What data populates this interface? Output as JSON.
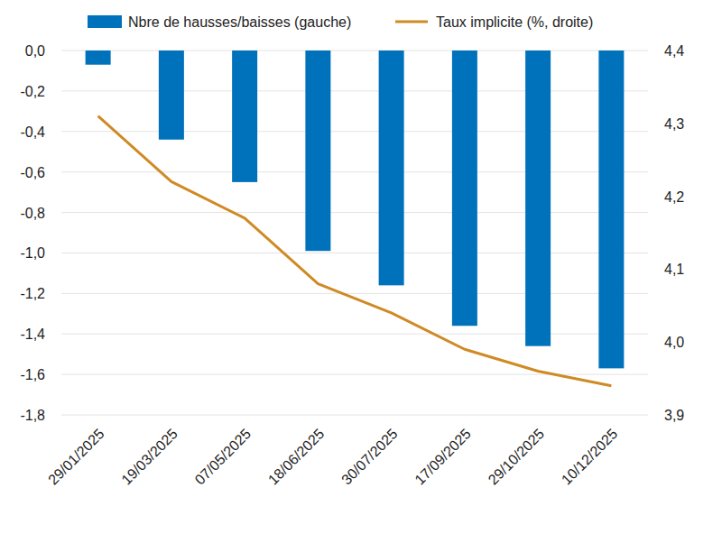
{
  "chart_data": {
    "type": "bar",
    "categories": [
      "29/01/2025",
      "19/03/2025",
      "07/05/2025",
      "18/06/2025",
      "30/07/2025",
      "17/09/2025",
      "29/10/2025",
      "10/12/2025"
    ],
    "series": [
      {
        "name": "Nbre de hausses/baisses (gauche)",
        "type": "bar",
        "color": "#0072bc",
        "axis": "y",
        "values": [
          -0.07,
          -0.44,
          -0.65,
          -0.99,
          -1.16,
          -1.36,
          -1.46,
          -1.57
        ]
      },
      {
        "name": "Taux implicite (%, droite)",
        "type": "line",
        "color": "#d08a24",
        "axis": "y2",
        "values": [
          4.31,
          4.22,
          4.17,
          4.08,
          4.04,
          3.99,
          3.96,
          3.94
        ]
      }
    ],
    "ylim": [
      -1.8,
      0.0
    ],
    "yticks": [
      {
        "value": 0.0,
        "label": "0,0"
      },
      {
        "value": -0.2,
        "label": "-0,2"
      },
      {
        "value": -0.4,
        "label": "-0,4"
      },
      {
        "value": -0.6,
        "label": "-0,6"
      },
      {
        "value": -0.8,
        "label": "-0,8"
      },
      {
        "value": -1.0,
        "label": "-1,0"
      },
      {
        "value": -1.2,
        "label": "-1,2"
      },
      {
        "value": -1.4,
        "label": "-1,4"
      },
      {
        "value": -1.6,
        "label": "-1,6"
      },
      {
        "value": -1.8,
        "label": "-1,8"
      }
    ],
    "y2lim": [
      3.9,
      4.4
    ],
    "y2ticks": [
      {
        "value": 4.4,
        "label": "4,4"
      },
      {
        "value": 4.3,
        "label": "4,3"
      },
      {
        "value": 4.2,
        "label": "4,2"
      },
      {
        "value": 4.1,
        "label": "4,1"
      },
      {
        "value": 4.0,
        "label": "4,0"
      },
      {
        "value": 3.9,
        "label": "3,9"
      }
    ],
    "grid": true,
    "legend": "top"
  }
}
